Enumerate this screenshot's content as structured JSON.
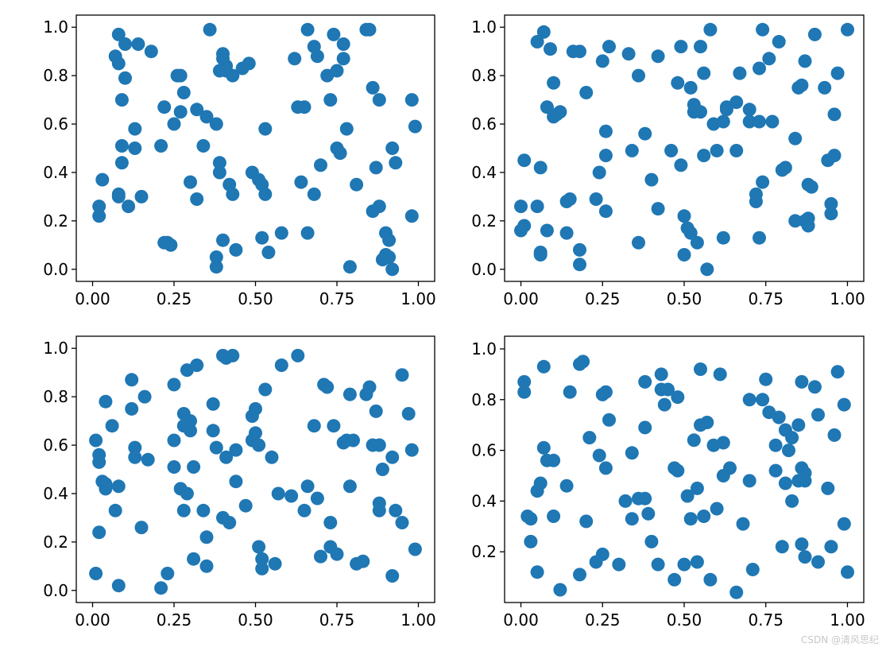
{
  "watermark": "CSDN @清风思纪",
  "point_color": "#1f77b4",
  "chart_data": [
    {
      "type": "scatter",
      "xlim": [
        -0.05,
        1.05
      ],
      "ylim": [
        -0.05,
        1.05
      ],
      "xticks": [
        0.0,
        0.25,
        0.5,
        0.75,
        1.0
      ],
      "xtick_labels": [
        "0.00",
        "0.25",
        "0.50",
        "0.75",
        "1.00"
      ],
      "yticks": [
        0.0,
        0.2,
        0.4,
        0.6,
        0.8,
        1.0
      ],
      "ytick_labels": [
        "0.0",
        "0.2",
        "0.4",
        "0.6",
        "0.8",
        "1.0"
      ],
      "x": [
        0.02,
        0.02,
        0.03,
        0.08,
        0.08,
        0.08,
        0.09,
        0.09,
        0.1,
        0.11,
        0.13,
        0.13,
        0.14,
        0.15,
        0.18,
        0.21,
        0.22,
        0.22,
        0.23,
        0.24,
        0.25,
        0.26,
        0.27,
        0.27,
        0.28,
        0.3,
        0.32,
        0.32,
        0.34,
        0.35,
        0.38,
        0.38,
        0.38,
        0.39,
        0.39,
        0.4,
        0.4,
        0.4,
        0.41,
        0.42,
        0.43,
        0.43,
        0.44,
        0.46,
        0.48,
        0.49,
        0.51,
        0.52,
        0.52,
        0.53,
        0.53,
        0.54,
        0.58,
        0.62,
        0.63,
        0.64,
        0.65,
        0.66,
        0.66,
        0.68,
        0.68,
        0.69,
        0.7,
        0.72,
        0.73,
        0.74,
        0.75,
        0.75,
        0.76,
        0.77,
        0.78,
        0.79,
        0.81,
        0.84,
        0.85,
        0.86,
        0.87,
        0.88,
        0.88,
        0.89,
        0.9,
        0.9,
        0.91,
        0.91,
        0.92,
        0.92,
        0.93,
        0.98,
        0.98,
        0.99,
        0.08,
        0.1,
        0.07,
        0.09,
        0.36,
        0.39,
        0.41,
        0.77,
        0.86
      ],
      "y": [
        0.22,
        0.26,
        0.37,
        0.3,
        0.31,
        0.85,
        0.51,
        0.44,
        0.79,
        0.26,
        0.5,
        0.58,
        0.93,
        0.3,
        0.9,
        0.51,
        0.67,
        0.11,
        0.11,
        0.1,
        0.6,
        0.8,
        0.65,
        0.8,
        0.73,
        0.36,
        0.29,
        0.66,
        0.51,
        0.63,
        0.05,
        0.01,
        0.6,
        0.4,
        0.82,
        0.87,
        0.89,
        0.12,
        0.84,
        0.35,
        0.31,
        0.8,
        0.08,
        0.83,
        0.85,
        0.4,
        0.37,
        0.35,
        0.13,
        0.58,
        0.31,
        0.07,
        0.15,
        0.87,
        0.67,
        0.36,
        0.67,
        0.15,
        0.99,
        0.92,
        0.31,
        0.88,
        0.43,
        0.8,
        0.7,
        0.97,
        0.5,
        0.82,
        0.48,
        0.93,
        0.58,
        0.01,
        0.35,
        0.99,
        0.99,
        0.24,
        0.42,
        0.26,
        0.7,
        0.04,
        0.15,
        0.06,
        0.12,
        0.05,
        0.5,
        0.0,
        0.44,
        0.7,
        0.22,
        0.59,
        0.97,
        0.93,
        0.88,
        0.7,
        0.99,
        0.44,
        0.82,
        0.87,
        0.75
      ]
    },
    {
      "type": "scatter",
      "xlim": [
        -0.05,
        1.05
      ],
      "ylim": [
        -0.05,
        1.05
      ],
      "xticks": [
        0.0,
        0.25,
        0.5,
        0.75,
        1.0
      ],
      "xtick_labels": [
        "0.00",
        "0.25",
        "0.50",
        "0.75",
        "1.00"
      ],
      "yticks": [
        0.0,
        0.2,
        0.4,
        0.6,
        0.8,
        1.0
      ],
      "ytick_labels": [
        "0.0",
        "0.2",
        "0.4",
        "0.6",
        "0.8",
        "1.0"
      ],
      "x": [
        0.0,
        0.0,
        0.01,
        0.01,
        0.05,
        0.05,
        0.06,
        0.06,
        0.06,
        0.07,
        0.08,
        0.08,
        0.09,
        0.1,
        0.1,
        0.11,
        0.12,
        0.14,
        0.14,
        0.15,
        0.16,
        0.18,
        0.18,
        0.18,
        0.2,
        0.23,
        0.24,
        0.25,
        0.26,
        0.26,
        0.26,
        0.27,
        0.33,
        0.34,
        0.36,
        0.36,
        0.38,
        0.4,
        0.42,
        0.42,
        0.46,
        0.48,
        0.49,
        0.49,
        0.5,
        0.5,
        0.51,
        0.52,
        0.52,
        0.53,
        0.53,
        0.54,
        0.55,
        0.55,
        0.56,
        0.56,
        0.57,
        0.58,
        0.59,
        0.6,
        0.62,
        0.62,
        0.63,
        0.63,
        0.66,
        0.66,
        0.67,
        0.7,
        0.7,
        0.72,
        0.72,
        0.73,
        0.73,
        0.73,
        0.74,
        0.74,
        0.76,
        0.77,
        0.79,
        0.8,
        0.81,
        0.84,
        0.84,
        0.85,
        0.86,
        0.87,
        0.87,
        0.88,
        0.88,
        0.88,
        0.89,
        0.9,
        0.93,
        0.94,
        0.95,
        0.95,
        0.96,
        0.96,
        0.97,
        1.0
      ],
      "y": [
        0.16,
        0.26,
        0.45,
        0.18,
        0.94,
        0.26,
        0.42,
        0.07,
        0.06,
        0.98,
        0.67,
        0.16,
        0.91,
        0.77,
        0.63,
        0.64,
        0.65,
        0.15,
        0.28,
        0.29,
        0.9,
        0.08,
        0.02,
        0.9,
        0.73,
        0.29,
        0.4,
        0.86,
        0.47,
        0.57,
        0.24,
        0.92,
        0.89,
        0.49,
        0.8,
        0.11,
        0.56,
        0.37,
        0.25,
        0.88,
        0.49,
        0.77,
        0.43,
        0.92,
        0.22,
        0.06,
        0.17,
        0.15,
        0.75,
        0.65,
        0.68,
        0.11,
        0.92,
        0.65,
        0.81,
        0.47,
        0.0,
        0.99,
        0.6,
        0.49,
        0.13,
        0.61,
        0.66,
        0.67,
        0.49,
        0.69,
        0.81,
        0.61,
        0.66,
        0.28,
        0.31,
        0.61,
        0.83,
        0.13,
        0.36,
        0.99,
        0.87,
        0.61,
        0.94,
        0.41,
        0.42,
        0.54,
        0.2,
        0.75,
        0.76,
        0.86,
        0.2,
        0.21,
        0.35,
        0.18,
        0.34,
        0.97,
        0.75,
        0.45,
        0.23,
        0.27,
        0.64,
        0.47,
        0.81,
        0.99
      ]
    },
    {
      "type": "scatter",
      "xlim": [
        -0.05,
        1.05
      ],
      "ylim": [
        -0.05,
        1.05
      ],
      "xticks": [
        0.0,
        0.25,
        0.5,
        0.75,
        1.0
      ],
      "xtick_labels": [
        "0.00",
        "0.25",
        "0.50",
        "0.75",
        "1.00"
      ],
      "yticks": [
        0.0,
        0.2,
        0.4,
        0.6,
        0.8,
        1.0
      ],
      "ytick_labels": [
        "0.0",
        "0.2",
        "0.4",
        "0.6",
        "0.8",
        "1.0"
      ],
      "x": [
        0.01,
        0.01,
        0.02,
        0.02,
        0.02,
        0.03,
        0.04,
        0.04,
        0.04,
        0.06,
        0.07,
        0.08,
        0.08,
        0.12,
        0.12,
        0.13,
        0.13,
        0.15,
        0.16,
        0.17,
        0.21,
        0.23,
        0.25,
        0.25,
        0.25,
        0.27,
        0.28,
        0.28,
        0.28,
        0.29,
        0.29,
        0.3,
        0.3,
        0.31,
        0.31,
        0.32,
        0.34,
        0.35,
        0.35,
        0.37,
        0.37,
        0.38,
        0.4,
        0.4,
        0.41,
        0.41,
        0.42,
        0.43,
        0.44,
        0.44,
        0.47,
        0.49,
        0.49,
        0.5,
        0.5,
        0.51,
        0.51,
        0.52,
        0.52,
        0.53,
        0.55,
        0.56,
        0.57,
        0.58,
        0.61,
        0.63,
        0.65,
        0.66,
        0.68,
        0.69,
        0.7,
        0.71,
        0.72,
        0.73,
        0.73,
        0.74,
        0.75,
        0.77,
        0.78,
        0.79,
        0.79,
        0.8,
        0.81,
        0.83,
        0.84,
        0.85,
        0.86,
        0.87,
        0.88,
        0.88,
        0.88,
        0.89,
        0.92,
        0.92,
        0.93,
        0.95,
        0.95,
        0.97,
        0.98,
        0.99
      ],
      "y": [
        0.62,
        0.07,
        0.53,
        0.56,
        0.24,
        0.45,
        0.42,
        0.78,
        0.44,
        0.68,
        0.33,
        0.43,
        0.02,
        0.87,
        0.75,
        0.59,
        0.55,
        0.26,
        0.8,
        0.54,
        0.01,
        0.07,
        0.85,
        0.62,
        0.51,
        0.42,
        0.73,
        0.68,
        0.33,
        0.4,
        0.91,
        0.7,
        0.66,
        0.51,
        0.13,
        0.93,
        0.33,
        0.1,
        0.22,
        0.77,
        0.66,
        0.59,
        0.97,
        0.3,
        0.96,
        0.55,
        0.28,
        0.97,
        0.58,
        0.45,
        0.35,
        0.72,
        0.62,
        0.75,
        0.65,
        0.6,
        0.18,
        0.13,
        0.09,
        0.83,
        0.55,
        0.11,
        0.4,
        0.93,
        0.39,
        0.97,
        0.33,
        0.43,
        0.68,
        0.38,
        0.14,
        0.85,
        0.84,
        0.28,
        0.18,
        0.68,
        0.15,
        0.61,
        0.62,
        0.43,
        0.81,
        0.62,
        0.11,
        0.12,
        0.81,
        0.84,
        0.6,
        0.74,
        0.6,
        0.36,
        0.33,
        0.5,
        0.55,
        0.06,
        0.33,
        0.89,
        0.28,
        0.73,
        0.58,
        0.17
      ]
    },
    {
      "type": "scatter",
      "xlim": [
        -0.05,
        1.05
      ],
      "ylim": [
        -0.0,
        1.05
      ],
      "xticks": [
        0.0,
        0.25,
        0.5,
        0.75,
        1.0
      ],
      "xtick_labels": [
        "0.00",
        "0.25",
        "0.50",
        "0.75",
        "1.00"
      ],
      "yticks": [
        0.2,
        0.4,
        0.6,
        0.8,
        1.0
      ],
      "ytick_labels": [
        "0.2",
        "0.4",
        "0.6",
        "0.8",
        "1.0"
      ],
      "x": [
        0.01,
        0.01,
        0.02,
        0.03,
        0.03,
        0.05,
        0.06,
        0.07,
        0.07,
        0.08,
        0.1,
        0.1,
        0.12,
        0.14,
        0.15,
        0.18,
        0.18,
        0.19,
        0.2,
        0.21,
        0.23,
        0.24,
        0.25,
        0.25,
        0.26,
        0.27,
        0.3,
        0.32,
        0.34,
        0.34,
        0.36,
        0.38,
        0.38,
        0.39,
        0.4,
        0.42,
        0.43,
        0.44,
        0.45,
        0.47,
        0.47,
        0.48,
        0.48,
        0.5,
        0.51,
        0.52,
        0.53,
        0.54,
        0.54,
        0.55,
        0.55,
        0.56,
        0.57,
        0.58,
        0.59,
        0.6,
        0.61,
        0.62,
        0.64,
        0.66,
        0.68,
        0.7,
        0.71,
        0.74,
        0.75,
        0.76,
        0.78,
        0.78,
        0.79,
        0.8,
        0.81,
        0.82,
        0.83,
        0.83,
        0.85,
        0.85,
        0.86,
        0.86,
        0.86,
        0.87,
        0.87,
        0.87,
        0.9,
        0.91,
        0.91,
        0.94,
        0.95,
        0.96,
        0.97,
        0.99,
        0.99,
        1.0,
        0.05,
        0.26,
        0.38,
        0.43,
        0.62,
        0.7,
        0.81
      ],
      "y": [
        0.87,
        0.83,
        0.34,
        0.24,
        0.33,
        0.44,
        0.47,
        0.61,
        0.93,
        0.56,
        0.34,
        0.56,
        0.05,
        0.46,
        0.83,
        0.11,
        0.94,
        0.95,
        0.32,
        0.65,
        0.16,
        0.58,
        0.19,
        0.82,
        0.53,
        0.72,
        0.15,
        0.4,
        0.33,
        0.59,
        0.41,
        0.41,
        0.69,
        0.35,
        0.24,
        0.15,
        0.9,
        0.78,
        0.84,
        0.09,
        0.53,
        0.52,
        0.81,
        0.15,
        0.42,
        0.33,
        0.64,
        0.45,
        0.16,
        0.7,
        0.92,
        0.34,
        0.71,
        0.09,
        0.62,
        0.37,
        0.9,
        0.63,
        0.53,
        0.04,
        0.31,
        0.48,
        0.13,
        0.8,
        0.88,
        0.75,
        0.52,
        0.62,
        0.73,
        0.22,
        0.47,
        0.6,
        0.4,
        0.65,
        0.48,
        0.7,
        0.87,
        0.53,
        0.23,
        0.48,
        0.51,
        0.18,
        0.85,
        0.74,
        0.16,
        0.45,
        0.22,
        0.66,
        0.91,
        0.31,
        0.78,
        0.12,
        0.12,
        0.83,
        0.87,
        0.84,
        0.5,
        0.8,
        0.68
      ]
    }
  ]
}
